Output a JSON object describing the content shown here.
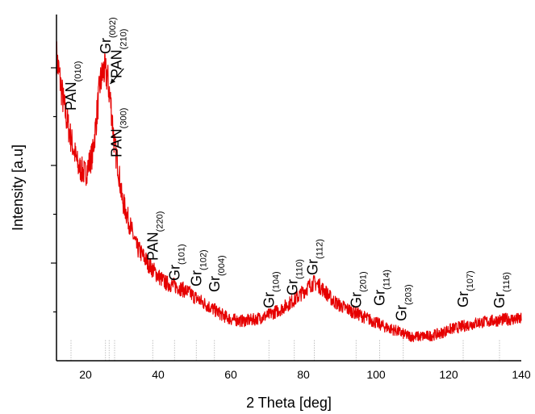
{
  "chart_data": {
    "type": "line",
    "title": "",
    "xlabel": "2 Theta [deg]",
    "ylabel": "Intensity [a.u]",
    "xlim": [
      12,
      140
    ],
    "ylim": [
      0,
      1
    ],
    "x_ticks": [
      20,
      40,
      60,
      80,
      100,
      120,
      140
    ],
    "y_ticks_labels": "none",
    "grid": false,
    "legend": "none",
    "colors": {
      "series": "#e60000",
      "peak_lines": "#b0b0b0",
      "axis": "#000000"
    },
    "series": [
      {
        "x": [
          12,
          14,
          16,
          18,
          20,
          22,
          23,
          24,
          25,
          26,
          27,
          28,
          29,
          30,
          32,
          34,
          36,
          38,
          40,
          42,
          45,
          48,
          50,
          52,
          55,
          58,
          60,
          63,
          66,
          70,
          74,
          78,
          80,
          82,
          83,
          84,
          86,
          88,
          90,
          94,
          98,
          102,
          106,
          108,
          110,
          112,
          115,
          118,
          120,
          124,
          128,
          132,
          136,
          140
        ],
        "values": [
          0.88,
          0.74,
          0.64,
          0.56,
          0.54,
          0.6,
          0.7,
          0.8,
          0.84,
          0.82,
          0.74,
          0.62,
          0.56,
          0.47,
          0.4,
          0.33,
          0.3,
          0.27,
          0.245,
          0.225,
          0.215,
          0.2,
          0.185,
          0.17,
          0.15,
          0.13,
          0.12,
          0.115,
          0.118,
          0.13,
          0.15,
          0.18,
          0.2,
          0.22,
          0.225,
          0.22,
          0.2,
          0.175,
          0.16,
          0.14,
          0.12,
          0.1,
          0.085,
          0.075,
          0.07,
          0.07,
          0.072,
          0.08,
          0.09,
          0.1,
          0.11,
          0.115,
          0.12,
          0.12
        ]
      }
    ],
    "peaks": [
      {
        "label": "PAN",
        "sub": "(010)",
        "x": 16,
        "rotated": true
      },
      {
        "label": "Gr",
        "sub": "(002)",
        "x": 25.5,
        "rotated": true
      },
      {
        "label": "PAN",
        "sub": "(210)",
        "x": 26.5,
        "rotated": true
      },
      {
        "label": "PAN",
        "sub": "(300)",
        "x": 28,
        "rotated": true
      },
      {
        "label": "PAN",
        "sub": "(220)",
        "x": 38.5,
        "rotated": true
      },
      {
        "label": "Gr",
        "sub": "(101)",
        "x": 44.5,
        "rotated": true
      },
      {
        "label": "Gr",
        "sub": "(102)",
        "x": 50.5,
        "rotated": true
      },
      {
        "label": "Gr",
        "sub": "(004)",
        "x": 55.5,
        "rotated": true
      },
      {
        "label": "Gr",
        "sub": "(104)",
        "x": 70.5,
        "rotated": true
      },
      {
        "label": "Gr",
        "sub": "(110)",
        "x": 77.5,
        "rotated": true
      },
      {
        "label": "Gr",
        "sub": "(112)",
        "x": 83,
        "rotated": true
      },
      {
        "label": "Gr",
        "sub": "(201)",
        "x": 94.5,
        "rotated": true
      },
      {
        "label": "Gr",
        "sub": "(114)",
        "x": 101,
        "rotated": true
      },
      {
        "label": "Gr",
        "sub": "(203)",
        "x": 107.5,
        "rotated": true
      },
      {
        "label": "Gr",
        "sub": "(107)",
        "x": 124,
        "rotated": true
      },
      {
        "label": "Gr",
        "sub": "(116)",
        "x": 134,
        "rotated": true
      }
    ]
  }
}
